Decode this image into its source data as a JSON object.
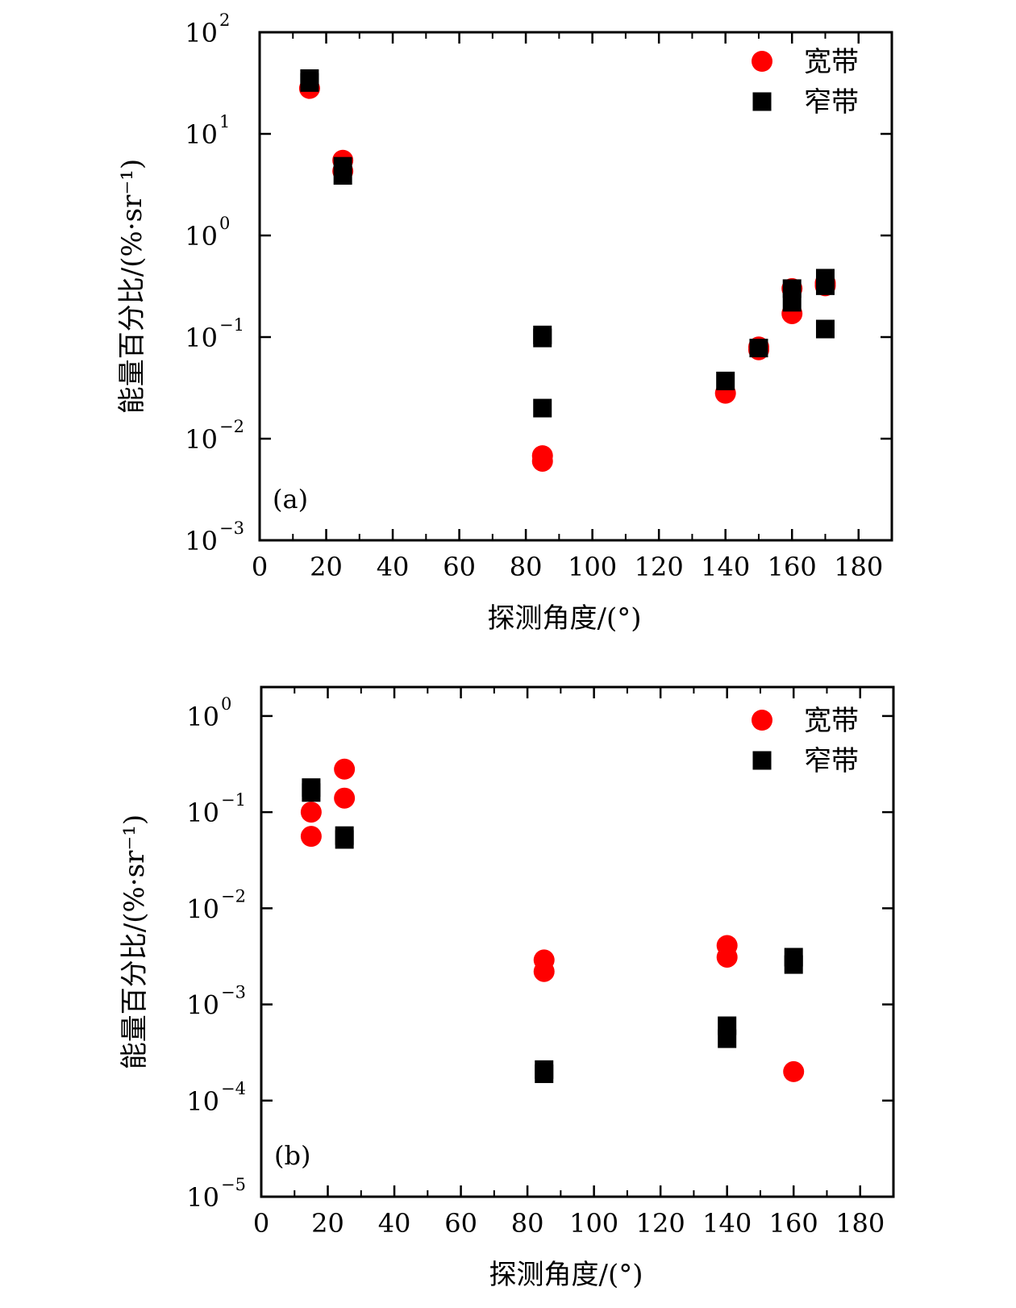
{
  "colors": {
    "broadband": "#ff0000",
    "narrowband": "#000000"
  },
  "chart_data": [
    {
      "type": "scatter",
      "panel_label": "(a)",
      "xlabel": "探测角度/(°)",
      "ylabel": "能量百分比/(%·sr⁻¹)",
      "y_scale": "log",
      "xlim": [
        0,
        190
      ],
      "ylim": [
        0.001,
        100
      ],
      "x_ticks": [
        "0",
        "20",
        "40",
        "60",
        "80",
        "100",
        "120",
        "140",
        "160",
        "180"
      ],
      "y_ticks": [
        {
          "base": "10",
          "exp": "2"
        },
        {
          "base": "10",
          "exp": "1"
        },
        {
          "base": "10",
          "exp": "0"
        },
        {
          "base": "10",
          "exp": "−1"
        },
        {
          "base": "10",
          "exp": "−2"
        },
        {
          "base": "10",
          "exp": "−3"
        }
      ],
      "legend_position": "top-right",
      "series": [
        {
          "name": "宽带",
          "marker": "circle",
          "color": "#ff0000",
          "points": [
            [
              15,
              28
            ],
            [
              25,
              5.5
            ],
            [
              25,
              4.3
            ],
            [
              85,
              0.0068
            ],
            [
              85,
              0.006
            ],
            [
              140,
              0.028
            ],
            [
              150,
              0.08
            ],
            [
              150,
              0.075
            ],
            [
              160,
              0.3
            ],
            [
              160,
              0.17
            ],
            [
              170,
              0.34
            ],
            [
              170,
              0.32
            ]
          ]
        },
        {
          "name": "窄带",
          "marker": "square",
          "color": "#000000",
          "points": [
            [
              15,
              35
            ],
            [
              15,
              32
            ],
            [
              25,
              4.8
            ],
            [
              25,
              3.9
            ],
            [
              85,
              0.105
            ],
            [
              85,
              0.098
            ],
            [
              85,
              0.02
            ],
            [
              140,
              0.037
            ],
            [
              150,
              0.078
            ],
            [
              160,
              0.3
            ],
            [
              160,
              0.22
            ],
            [
              170,
              0.38
            ],
            [
              170,
              0.32
            ],
            [
              170,
              0.12
            ]
          ]
        }
      ]
    },
    {
      "type": "scatter",
      "panel_label": "(b)",
      "xlabel": "探测角度/(°)",
      "ylabel": "能量百分比/(%·sr⁻¹)",
      "y_scale": "log",
      "xlim": [
        0,
        190
      ],
      "ylim": [
        1e-05,
        2
      ],
      "x_ticks": [
        "0",
        "20",
        "40",
        "60",
        "80",
        "100",
        "120",
        "140",
        "160",
        "180"
      ],
      "y_ticks": [
        {
          "base": "10",
          "exp": "0"
        },
        {
          "base": "10",
          "exp": "−1"
        },
        {
          "base": "10",
          "exp": "−2"
        },
        {
          "base": "10",
          "exp": "−3"
        },
        {
          "base": "10",
          "exp": "−4"
        },
        {
          "base": "10",
          "exp": "−5"
        }
      ],
      "legend_position": "top-right",
      "series": [
        {
          "name": "宽带",
          "marker": "circle",
          "color": "#ff0000",
          "points": [
            [
              15,
              0.1
            ],
            [
              15,
              0.056
            ],
            [
              25,
              0.28
            ],
            [
              25,
              0.14
            ],
            [
              85,
              0.0029
            ],
            [
              85,
              0.0022
            ],
            [
              140,
              0.0041
            ],
            [
              140,
              0.0031
            ],
            [
              160,
              0.0002
            ]
          ]
        },
        {
          "name": "窄带",
          "marker": "square",
          "color": "#000000",
          "points": [
            [
              15,
              0.18
            ],
            [
              15,
              0.16
            ],
            [
              25,
              0.057
            ],
            [
              25,
              0.052
            ],
            [
              85,
              0.00021
            ],
            [
              85,
              0.00019
            ],
            [
              140,
              0.0006
            ],
            [
              140,
              0.00044
            ],
            [
              160,
              0.0031
            ],
            [
              160,
              0.0026
            ]
          ]
        }
      ]
    }
  ]
}
